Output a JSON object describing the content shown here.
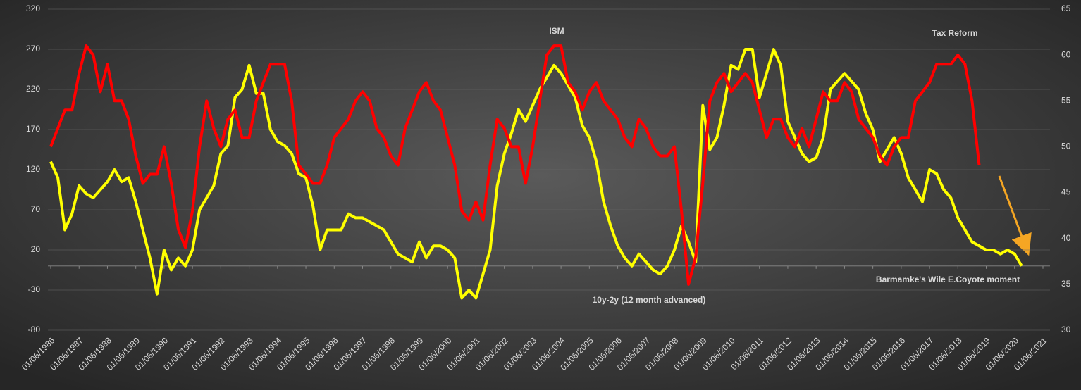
{
  "chart_data": {
    "type": "line",
    "categories": [
      "01/06/1986",
      null,
      null,
      null,
      "01/06/1987",
      null,
      null,
      null,
      "01/06/1988",
      null,
      null,
      null,
      "01/06/1989",
      null,
      null,
      null,
      "01/06/1990",
      null,
      null,
      null,
      "01/06/1991",
      null,
      null,
      null,
      "01/06/1992",
      null,
      null,
      null,
      "01/06/1993",
      null,
      null,
      null,
      "01/06/1994",
      null,
      null,
      null,
      "01/06/1995",
      null,
      null,
      null,
      "01/06/1996",
      null,
      null,
      null,
      "01/06/1997",
      null,
      null,
      null,
      "01/06/1998",
      null,
      null,
      null,
      "01/06/1999",
      null,
      null,
      null,
      "01/06/2000",
      null,
      null,
      null,
      "01/06/2001",
      null,
      null,
      null,
      "01/06/2002",
      null,
      null,
      null,
      "01/06/2003",
      null,
      null,
      null,
      "01/06/2004",
      null,
      null,
      null,
      "01/06/2005",
      null,
      null,
      null,
      "01/06/2006",
      null,
      null,
      null,
      "01/06/2007",
      null,
      null,
      null,
      "01/06/2008",
      null,
      null,
      null,
      "01/06/2009",
      null,
      null,
      null,
      "01/06/2010",
      null,
      null,
      null,
      "01/06/2011",
      null,
      null,
      null,
      "01/06/2012",
      null,
      null,
      null,
      "01/06/2013",
      null,
      null,
      null,
      "01/06/2014",
      null,
      null,
      null,
      "01/06/2015",
      null,
      null,
      null,
      "01/06/2016",
      null,
      null,
      null,
      "01/06/2017",
      null,
      null,
      null,
      "01/06/2018",
      null,
      null,
      null,
      "01/06/2019",
      null,
      null,
      null,
      "01/06/2020",
      null,
      null,
      null,
      "01/06/2021"
    ],
    "series": [
      {
        "name": "10y-2y (12 month advanced)",
        "color": "#ffff00",
        "values": [
          130,
          110,
          45,
          65,
          100,
          90,
          85,
          95,
          105,
          120,
          105,
          110,
          80,
          45,
          10,
          -35,
          20,
          -5,
          10,
          0,
          20,
          70,
          85,
          100,
          140,
          150,
          210,
          220,
          250,
          215,
          215,
          170,
          155,
          150,
          140,
          115,
          110,
          75,
          20,
          45,
          45,
          45,
          65,
          60,
          60,
          55,
          50,
          45,
          30,
          15,
          10,
          5,
          30,
          10,
          25,
          25,
          20,
          10,
          -40,
          -30,
          -40,
          -10,
          20,
          100,
          140,
          165,
          195,
          180,
          200,
          220,
          235,
          250,
          240,
          225,
          210,
          175,
          160,
          130,
          80,
          50,
          25,
          10,
          0,
          15,
          5,
          -5,
          -10,
          0,
          20,
          50,
          30,
          5,
          200,
          145,
          160,
          200,
          250,
          245,
          270,
          270,
          210,
          240,
          270,
          250,
          180,
          160,
          140,
          130,
          135,
          160,
          220,
          230,
          240,
          230,
          220,
          190,
          170,
          130,
          145,
          160,
          140,
          110,
          95,
          80,
          120,
          115,
          95,
          85,
          60,
          45,
          30,
          25,
          20,
          20,
          15,
          20,
          15,
          0,
          null,
          null,
          null
        ]
      },
      {
        "name": "ISM",
        "color": "#ff0000",
        "axis": "y2",
        "values": [
          50,
          52,
          54,
          54,
          58,
          61,
          60,
          56,
          59,
          55,
          55,
          53,
          49,
          46,
          47,
          47,
          50,
          46,
          41,
          39,
          43,
          50,
          55,
          52,
          50,
          53,
          54,
          51,
          51,
          55,
          57,
          59,
          59,
          59,
          55,
          48,
          47,
          46,
          46,
          48,
          51,
          52,
          53,
          55,
          56,
          55,
          52,
          51,
          49,
          48,
          52,
          54,
          56,
          57,
          55,
          54,
          51,
          48,
          43,
          42,
          44,
          42,
          48,
          53,
          52,
          50,
          50,
          46,
          50,
          55,
          60,
          61,
          61,
          57,
          56,
          54,
          56,
          57,
          55,
          54,
          53,
          51,
          50,
          53,
          52,
          50,
          49,
          49,
          50,
          43,
          35,
          38,
          46,
          55,
          57,
          58,
          56,
          57,
          58,
          57,
          54,
          51,
          53,
          53,
          51,
          50,
          52,
          50,
          53,
          56,
          55,
          55,
          57,
          56,
          53,
          52,
          51,
          49,
          48,
          50,
          51,
          51,
          55,
          56,
          57,
          59,
          59,
          59,
          60,
          59,
          55,
          48,
          null,
          null,
          null,
          null,
          null,
          null,
          null,
          null,
          null
        ]
      }
    ],
    "ylim": [
      -80,
      320
    ],
    "yticks": [
      -80,
      -30,
      20,
      70,
      120,
      170,
      220,
      270,
      320
    ],
    "y2lim": [
      30,
      65
    ],
    "y2ticks": [
      30,
      35,
      40,
      45,
      50,
      55,
      60,
      65
    ],
    "grid": true,
    "annotations": [
      {
        "text": "Tax Reform",
        "color": "#f5a623"
      },
      {
        "text": "Barmamke's Wile E.Coyote moment",
        "color": "#f5a623"
      }
    ]
  }
}
